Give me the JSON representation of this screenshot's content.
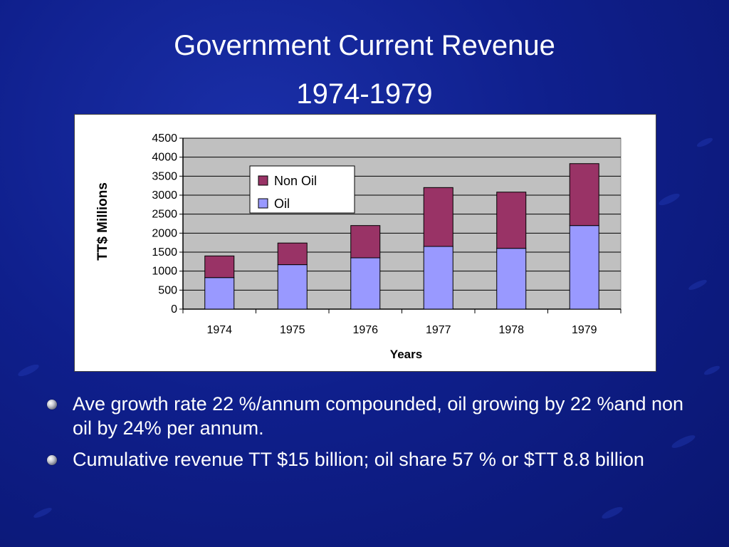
{
  "slide": {
    "title_line1": "Government Current  Revenue",
    "title_line2": "1974-1979",
    "bullets": [
      "Ave growth rate 22 %/annum compounded, oil growing by 22 %and non oil by 24% per annum.",
      "Cumulative revenue  TT $15 billion; oil share 57 % or $TT 8.8 billion"
    ],
    "colors": {
      "background": "#0f1f8c",
      "title": "#ffffff"
    }
  },
  "chart_data": {
    "type": "bar",
    "stacked": true,
    "categories": [
      "1974",
      "1975",
      "1976",
      "1977",
      "1978",
      "1979"
    ],
    "series": [
      {
        "name": "Oil",
        "values": [
          830,
          1170,
          1350,
          1650,
          1600,
          2200
        ],
        "color": "#9999ff"
      },
      {
        "name": "Non Oil",
        "values": [
          570,
          570,
          850,
          1550,
          1480,
          1630
        ],
        "color": "#993366"
      }
    ],
    "xlabel": "Years",
    "ylabel": "TT$ Millions",
    "ylim": [
      0,
      4500
    ],
    "yticks": [
      "0",
      "500",
      "1000",
      "1500",
      "2000",
      "2500",
      "3000",
      "3500",
      "4000",
      "4500"
    ],
    "grid": true,
    "plot_background": "#c0c0c0",
    "legend_placement": "top-left inside plot",
    "legend_order": [
      "Non Oil",
      "Oil"
    ]
  }
}
